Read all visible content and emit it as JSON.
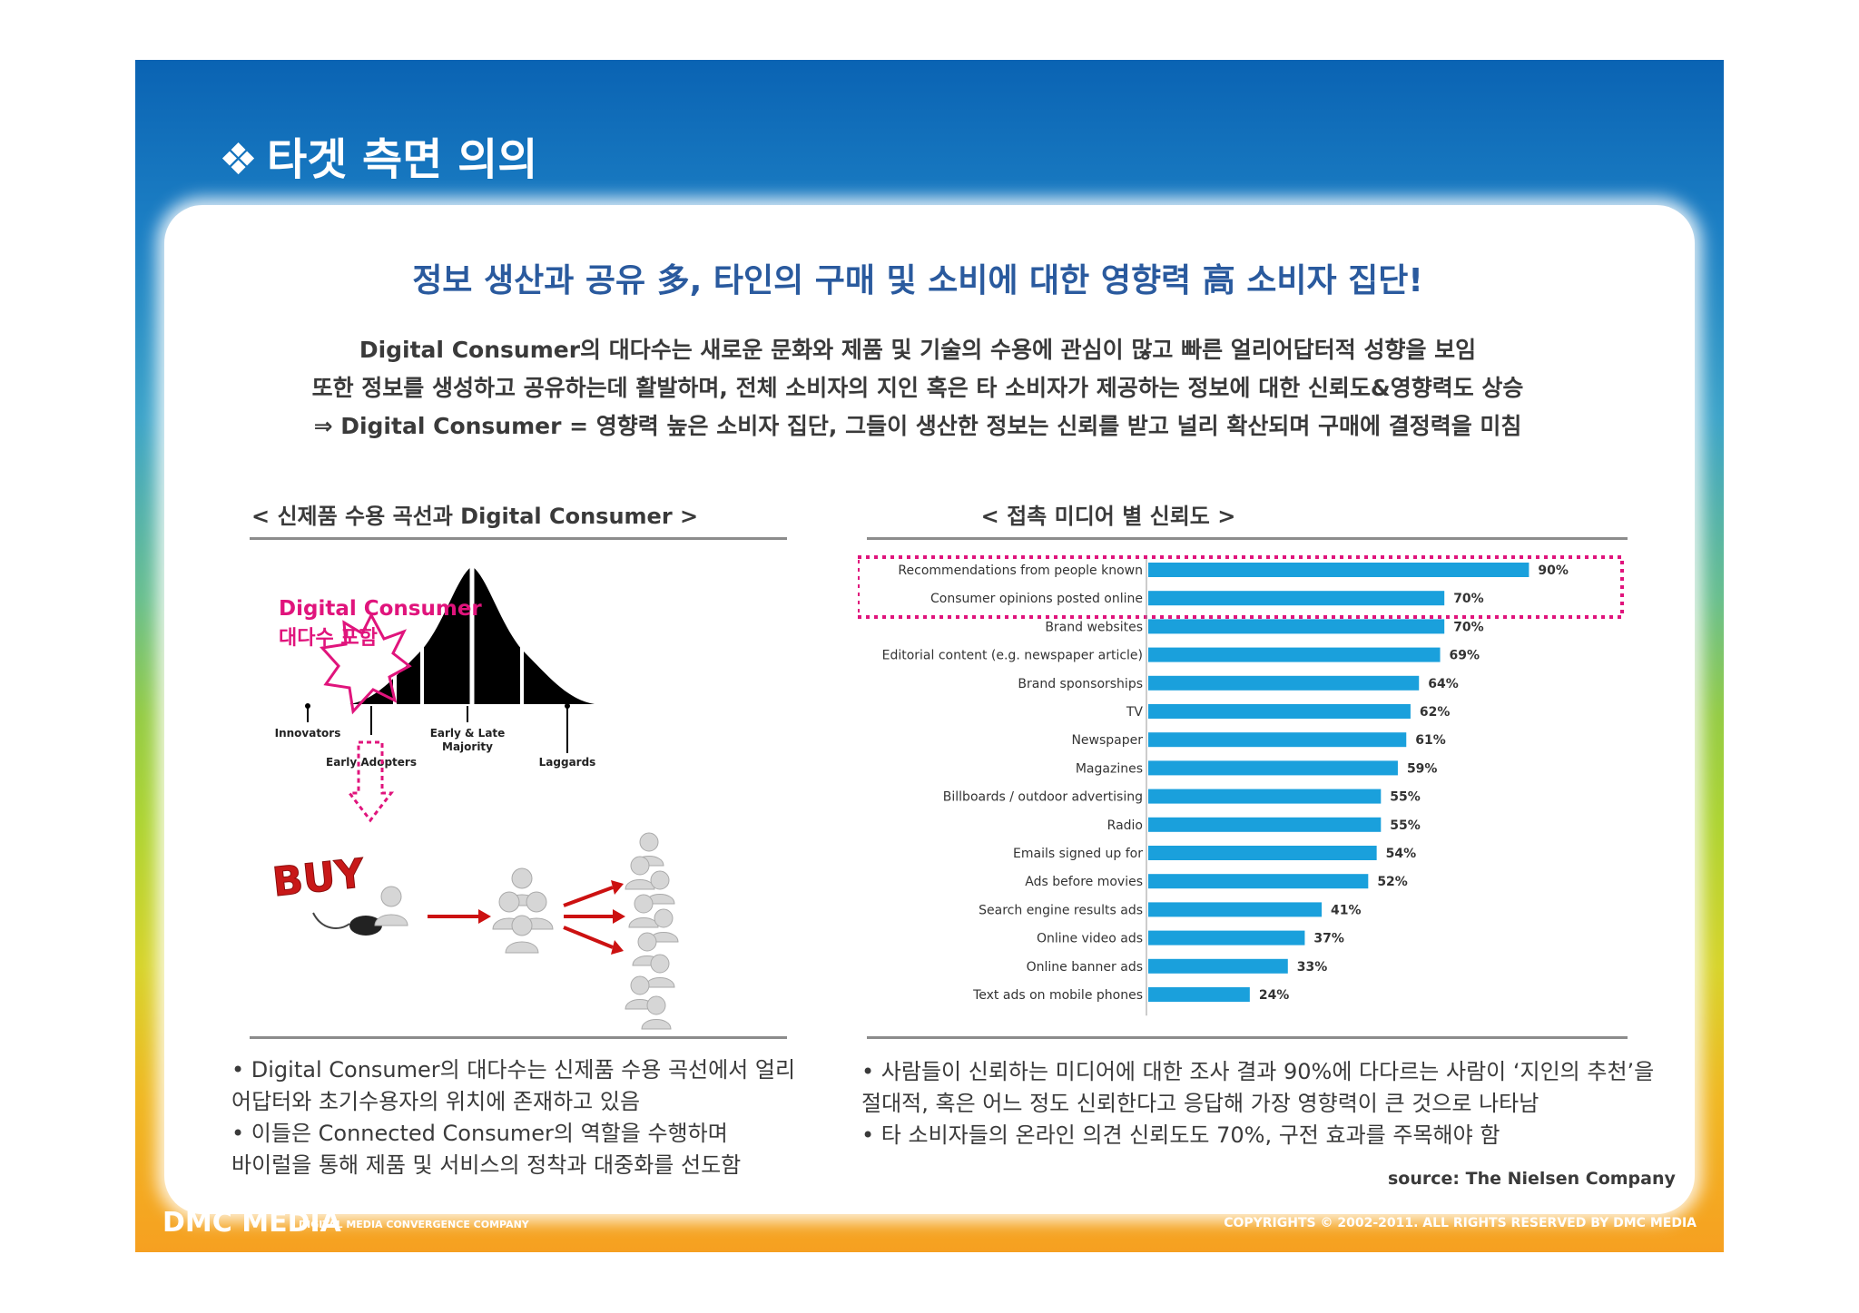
{
  "slide": {
    "bullet": "❖",
    "title": "타겟 측면 의의"
  },
  "headline": "정보 생산과 공유 多, 타인의 구매 및 소비에 대한 영향력 高 소비자 집단!",
  "summary": [
    "Digital Consumer의 대다수는 새로운 문화와 제품 및 기술의 수용에 관심이 많고 빠른 얼리어답터적 성향을 보임",
    "또한 정보를 생성하고 공유하는데 활발하며, 전체 소비자의 지인 혹은 타 소비자가 제공하는 정보에 대한 신뢰도&영향력도 상승",
    "⇒ Digital Consumer = 영향력 높은 소비자 집단, 그들이 생산한 정보는 신뢰를 받고 널리 확산되며 구매에 결정력을 미침"
  ],
  "left": {
    "caption": "< 신제품 수용 곡선과 Digital Consumer >",
    "callout_line1": "Digital Consumer",
    "callout_line2": "대다수 포함",
    "segments": {
      "innovators": "Innovators",
      "early_adopters": "Early Adopters",
      "majority_1": "Early & Late",
      "majority_2": "Majority",
      "laggards": "Laggards"
    },
    "buy_text": "BUY",
    "notes": [
      "• Digital Consumer의 대다수는 신제품 수용 곡선에서 얼리",
      "  어답터와 초기수용자의 위치에 존재하고 있음",
      "• 이들은 Connected Consumer의 역할을 수행하며",
      "  바이럴을 통해 제품 및 서비스의 정착과 대중화를 선도함"
    ]
  },
  "right": {
    "caption": "< 접촉 미디어 별 신뢰도 >",
    "notes": [
      "• 사람들이 신뢰하는 미디어에 대한 조사 결과  90%에 다다르는 사람이 ‘지인의 추천’을",
      "  절대적, 혹은 어느 정도 신뢰한다고 응답해 가장 영향력이 큰 것으로 나타남",
      "• 타 소비자들의 온라인 의견 신뢰도도 70%, 구전 효과를 주목해야 함"
    ],
    "source": "source: The Nielsen Company"
  },
  "chart_data": {
    "type": "bar",
    "orientation": "horizontal",
    "title": "< 접촉 미디어 별 신뢰도 >",
    "xlim": [
      0,
      100
    ],
    "bar_color": "#1aa0dc",
    "highlight_color": "#e0147c",
    "highlighted_categories": [
      "Recommendations from people known",
      "Consumer opinions posted online"
    ],
    "categories": [
      "Recommendations from people known",
      "Consumer opinions posted online",
      "Brand websites",
      "Editorial content (e.g. newspaper article)",
      "Brand sponsorships",
      "TV",
      "Newspaper",
      "Magazines",
      "Billboards / outdoor advertising",
      "Radio",
      "Emails signed up for",
      "Ads before movies",
      "Search engine results ads",
      "Online video ads",
      "Online banner ads",
      "Text ads on mobile phones"
    ],
    "values": [
      90,
      70,
      70,
      69,
      64,
      62,
      61,
      59,
      55,
      55,
      54,
      52,
      41,
      37,
      33,
      24
    ],
    "value_labels": [
      "90%",
      "70%",
      "70%",
      "69%",
      "64%",
      "62%",
      "61%",
      "59%",
      "55%",
      "55%",
      "54%",
      "52%",
      "41%",
      "37%",
      "33%",
      "24%"
    ]
  },
  "footer": {
    "logo": "DMC MEDIA",
    "tagline": "DIGITAL MEDIA CONVERGENCE COMPANY",
    "copyright": "COPYRIGHTS © 2002-2011. ALL RIGHTS RESERVED BY DMC MEDIA"
  },
  "colors": {
    "headline": "#2a5a9e",
    "callout": "#e0147c",
    "arrow": "#cc1111"
  }
}
